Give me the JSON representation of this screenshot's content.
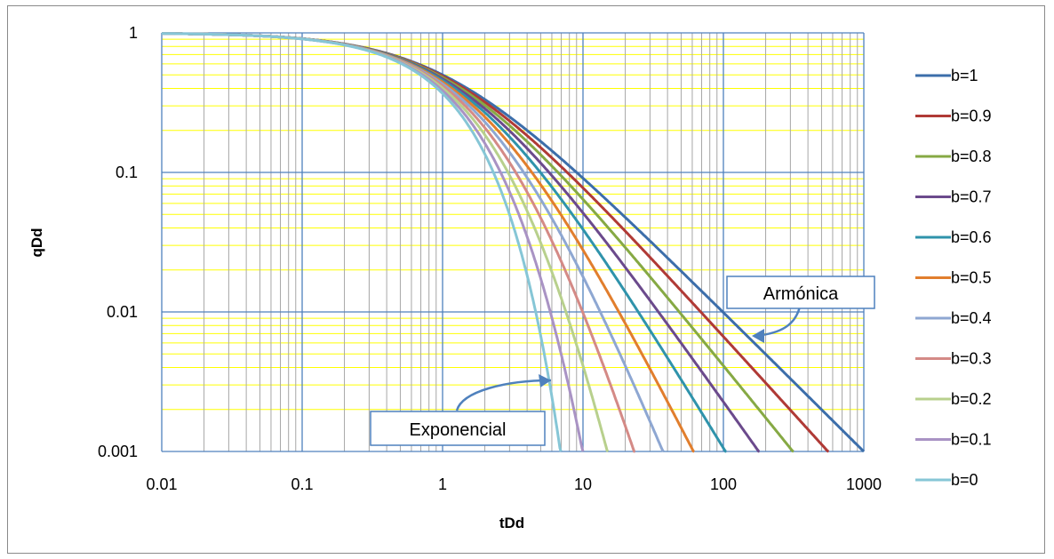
{
  "chart_data": {
    "type": "line",
    "title": "",
    "xlabel": "tDd",
    "ylabel": "qDd",
    "x_scale": "log",
    "y_scale": "log",
    "xlim": [
      0.01,
      1000
    ],
    "ylim": [
      0.001,
      1
    ],
    "x_ticks": [
      "0.01",
      "0.1",
      "1",
      "10",
      "100",
      "1000"
    ],
    "y_ticks": [
      "1",
      "0.1",
      "0.01",
      "0.001"
    ],
    "grid": "on",
    "legend_position": "right",
    "series": [
      {
        "name": "b=1",
        "b": 1,
        "color": "#3c6eaa"
      },
      {
        "name": "b=0.9",
        "b": 0.9,
        "color": "#b03a36"
      },
      {
        "name": "b=0.8",
        "b": 0.8,
        "color": "#86a944"
      },
      {
        "name": "b=0.7",
        "b": 0.7,
        "color": "#6b4a8c"
      },
      {
        "name": "b=0.6",
        "b": 0.6,
        "color": "#2f93ab"
      },
      {
        "name": "b=0.5",
        "b": 0.5,
        "color": "#e17e2d"
      },
      {
        "name": "b=0.4",
        "b": 0.4,
        "color": "#8ea7d2"
      },
      {
        "name": "b=0.3",
        "b": 0.3,
        "color": "#d48a86"
      },
      {
        "name": "b=0.2",
        "b": 0.2,
        "color": "#b8d08d"
      },
      {
        "name": "b=0.1",
        "b": 0.1,
        "color": "#a993c4"
      },
      {
        "name": "b=0",
        "b": 0,
        "color": "#86c6d6"
      }
    ],
    "annotations": [
      {
        "text": "Exponencial"
      },
      {
        "text": "Armónica"
      }
    ]
  },
  "colors": {
    "major_grid": "#4f81bd",
    "minor_grid_x": "#a6a6a6",
    "minor_grid_y": "#ffff00",
    "annotation_border": "#4f81bd"
  }
}
